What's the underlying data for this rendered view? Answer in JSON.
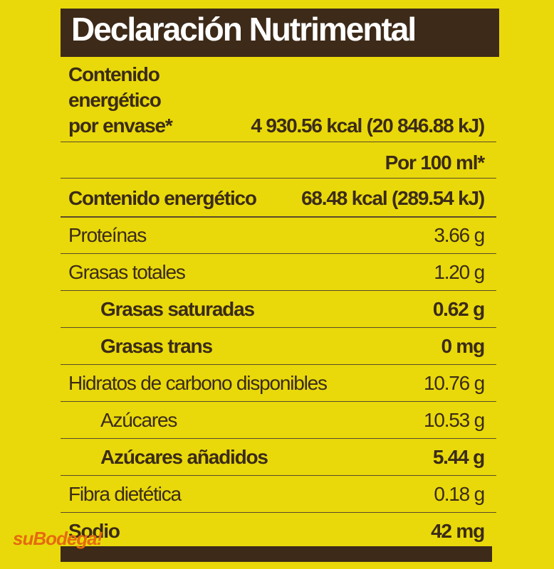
{
  "header": {
    "title": "Declaración Nutrimental"
  },
  "energy_per_package": {
    "label_lines": [
      "Contenido",
      "energético",
      "por envase*"
    ],
    "value": "4 930.56 kcal (20 846.88 kJ)"
  },
  "per_100": "Por 100 ml*",
  "rows": [
    {
      "label": "Contenido energético",
      "value": "68.48 kcal (289.54 kJ)",
      "bold": true,
      "indent": false
    },
    {
      "label": "Proteínas",
      "value": "3.66 g",
      "bold": false,
      "indent": false
    },
    {
      "label": "Grasas totales",
      "value": "1.20 g",
      "bold": false,
      "indent": false
    },
    {
      "label": "Grasas saturadas",
      "value": "0.62 g",
      "bold": true,
      "indent": true
    },
    {
      "label": "Grasas trans",
      "value": "0 mg",
      "bold": true,
      "indent": true
    },
    {
      "label": "Hidratos de carbono disponibles",
      "value": "10.76 g",
      "bold": false,
      "indent": false
    },
    {
      "label": "Azúcares",
      "value": "10.53 g",
      "bold": false,
      "indent": true
    },
    {
      "label": "Azúcares añadidos",
      "value": "5.44 g",
      "bold": true,
      "indent": true
    },
    {
      "label": "Fibra dietética",
      "value": "0.18 g",
      "bold": false,
      "indent": false
    },
    {
      "label": "Sodio",
      "value": "42 mg",
      "bold": true,
      "indent": false
    }
  ],
  "watermark": "suBodega!"
}
